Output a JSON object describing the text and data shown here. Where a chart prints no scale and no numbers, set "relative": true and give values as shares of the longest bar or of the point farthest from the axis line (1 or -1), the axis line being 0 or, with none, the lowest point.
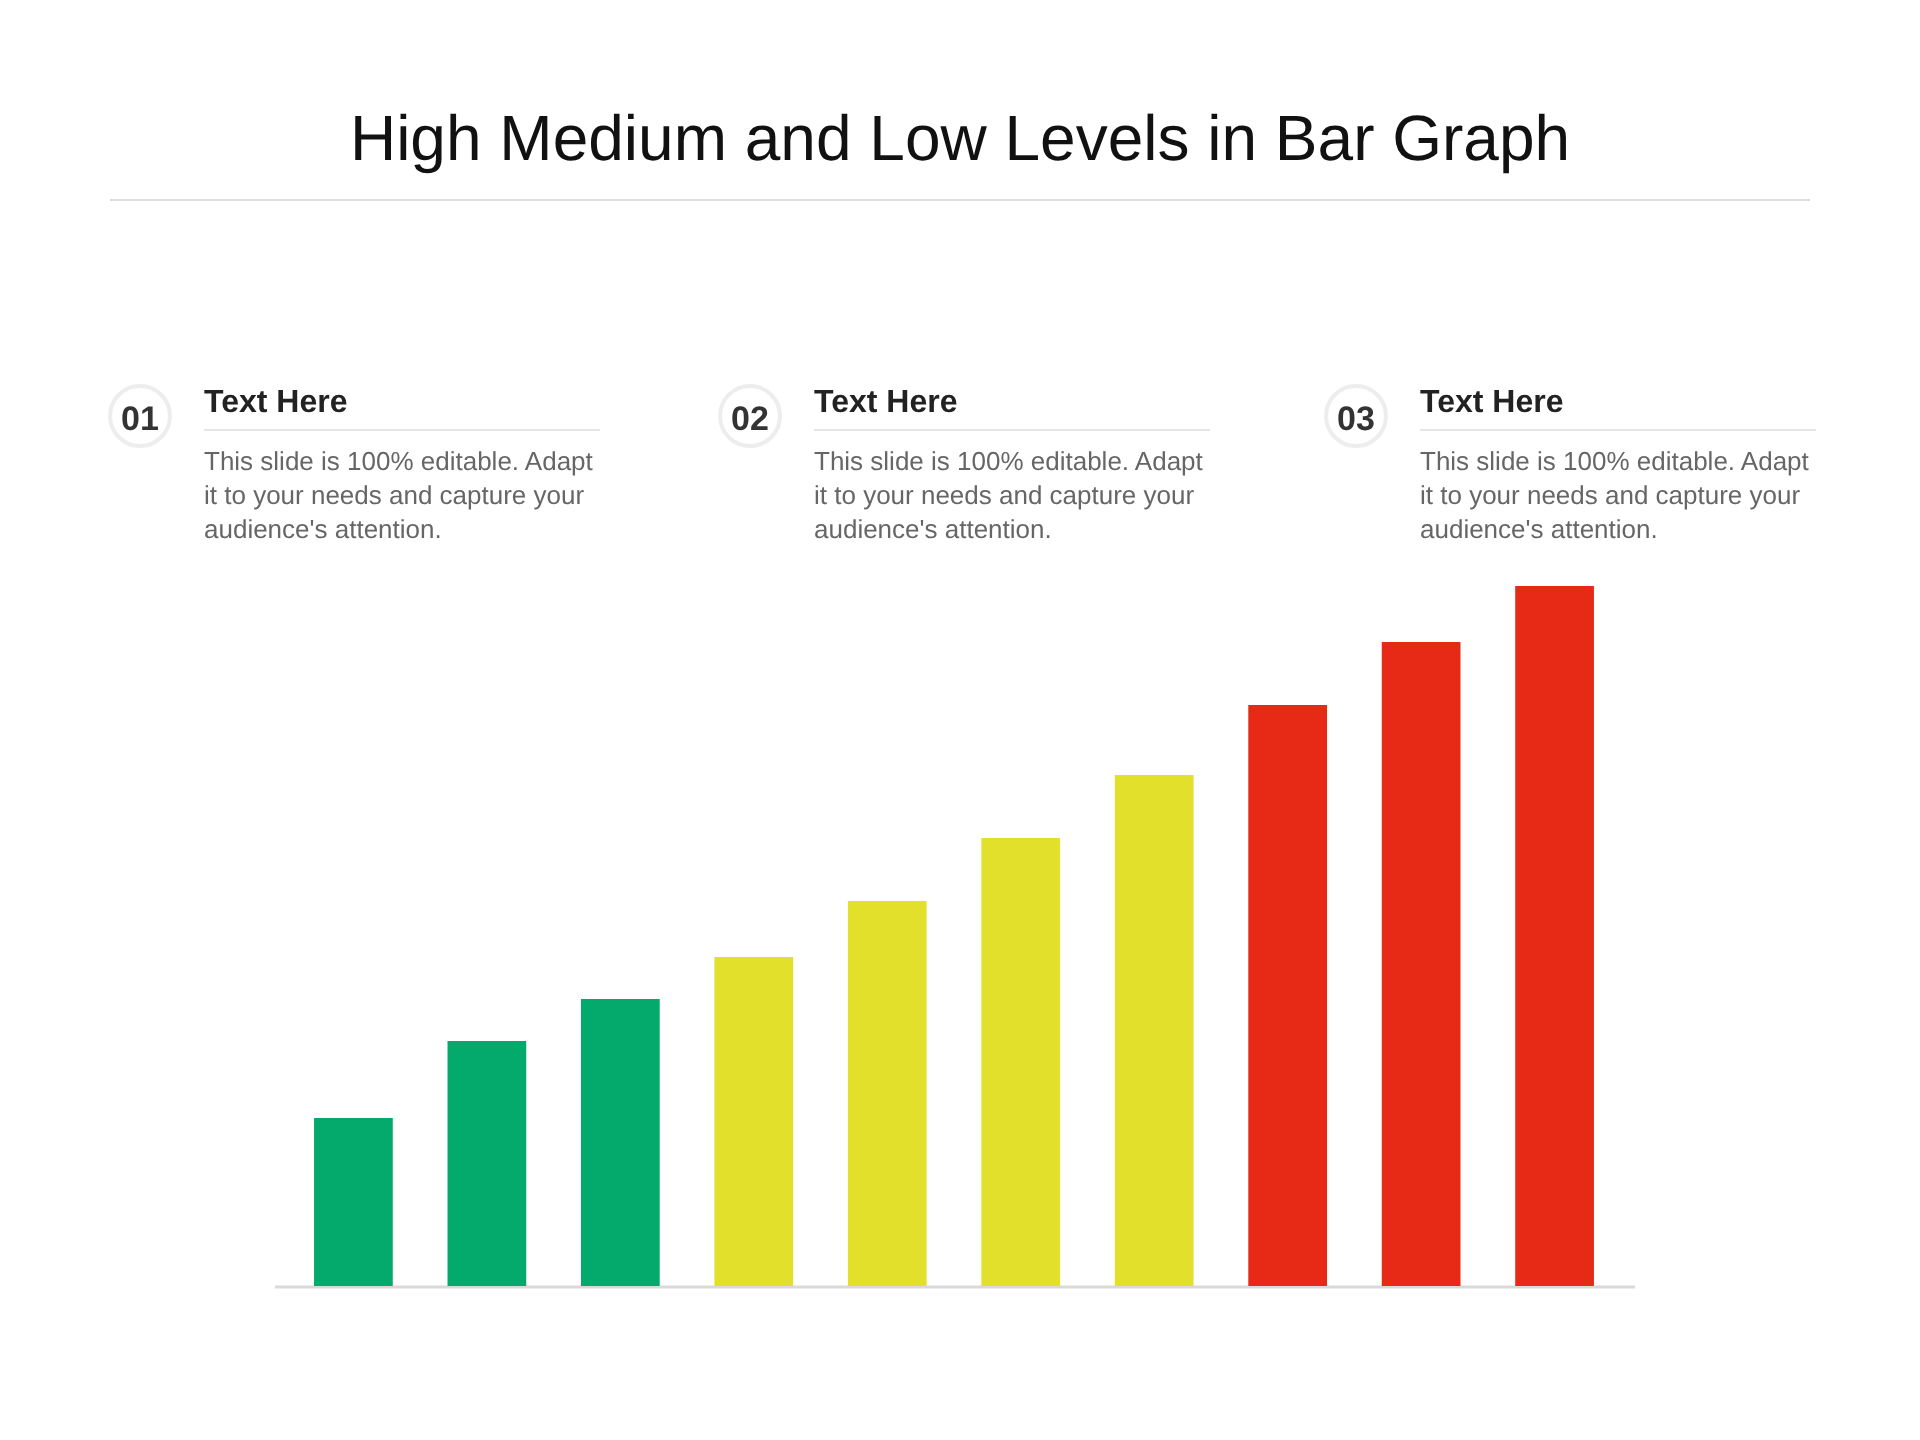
{
  "chart_data": {
    "type": "bar",
    "title": "High Medium and Low Levels in Bar Graph",
    "relative": true,
    "categories": [
      null,
      null,
      null,
      null,
      null,
      null,
      null,
      null,
      null,
      null
    ],
    "values": [
      0.24,
      0.35,
      0.41,
      0.47,
      0.55,
      0.64,
      0.73,
      0.83,
      0.92,
      1.0
    ],
    "colors": [
      "#04aa6b",
      "#04aa6b",
      "#04aa6b",
      "#e3e02b",
      "#e3e02b",
      "#e3e02b",
      "#e3e02b",
      "#e62a16",
      "#e62a16",
      "#e62a16"
    ],
    "annotations": [
      "01",
      "Text Here",
      "This slide is 100% editable. Adapt it to your needs and capture your audience's attention.",
      "02",
      "Text Here",
      "This slide is 100% editable. Adapt it to your needs and capture your audience's attention.",
      "03",
      "Text Here",
      "This slide is 100% editable. Adapt it to your needs and capture your audience's attention."
    ]
  }
}
